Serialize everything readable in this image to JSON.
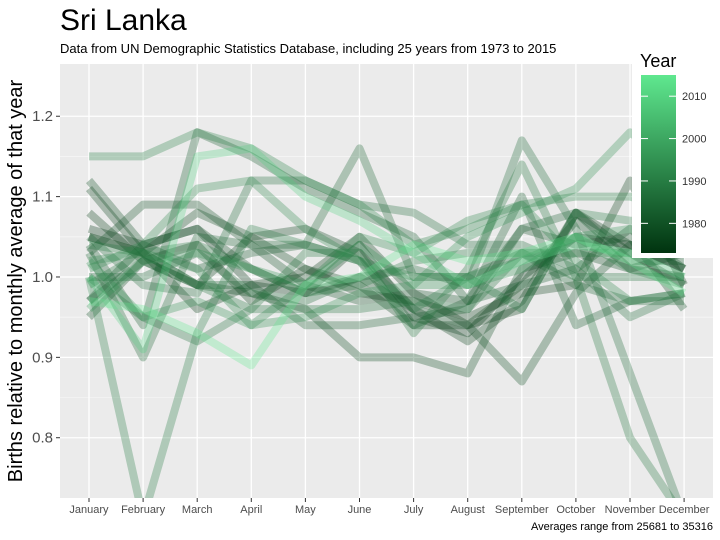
{
  "chart_data": {
    "type": "line",
    "title": "Sri Lanka",
    "subtitle": "Data from UN Demographic Statistics Database, including 25 years from 1973 to 2015",
    "xlabel": "",
    "ylabel": "Births relative to monthly average of that year",
    "caption": "Averages range from 25681 to 35316",
    "categories": [
      "January",
      "February",
      "March",
      "April",
      "May",
      "June",
      "July",
      "August",
      "September",
      "October",
      "November",
      "December"
    ],
    "yticks": [
      0.8,
      0.9,
      1.0,
      1.1,
      1.2
    ],
    "ytick_labels": [
      "0.8",
      "0.9",
      "1.0",
      "1.1",
      "1.2"
    ],
    "ylim": [
      0.725,
      1.265
    ],
    "grid": true,
    "legend": {
      "title": "Year",
      "position": "top-right",
      "type": "colorbar",
      "range": [
        1973,
        2015
      ],
      "ticks": [
        1980,
        1990,
        2000,
        2010
      ],
      "tick_labels": [
        "1980",
        "1990",
        "2000",
        "2010"
      ],
      "colors": [
        "#00330f",
        "#5fe88f"
      ]
    },
    "series": [
      {
        "year": 1973,
        "values": [
          1.06,
          1.04,
          1.06,
          0.99,
          0.98,
          1.04,
          0.95,
          0.93,
          1.0,
          1.05,
          1.04,
          1.01
        ]
      },
      {
        "year": 1974,
        "values": [
          1.05,
          1.03,
          0.96,
          0.99,
          1.0,
          1.05,
          0.98,
          0.94,
          0.96,
          1.08,
          1.04,
          1.03
        ]
      },
      {
        "year": 1975,
        "values": [
          1.08,
          1.02,
          1.04,
          0.97,
          1.01,
          0.98,
          0.97,
          0.95,
          0.98,
          0.99,
          1.12,
          0.99
        ]
      },
      {
        "year": 1976,
        "values": [
          1.11,
          1.03,
          0.99,
          1.05,
          1.06,
          1.03,
          0.96,
          0.92,
          0.97,
          1.08,
          1.03,
          0.99
        ]
      },
      {
        "year": 1977,
        "values": [
          1.05,
          1.03,
          1.08,
          1.05,
          1.01,
          0.99,
          0.94,
          0.94,
          0.99,
          1.07,
          1.01,
          1.03
        ]
      },
      {
        "year": 1978,
        "values": [
          0.95,
          1.02,
          0.99,
          0.98,
          0.96,
          0.9,
          0.9,
          0.88,
          1.01,
          1.03,
          1.01,
          1.0
        ]
      },
      {
        "year": 1979,
        "values": [
          1.12,
          1.04,
          1.06,
          1.01,
          0.98,
          1.0,
          0.96,
          0.94,
          0.87,
          0.98,
          1.04,
          1.01
        ]
      },
      {
        "year": 1980,
        "values": [
          1.03,
          1.09,
          1.09,
          1.04,
          0.99,
          0.97,
          0.98,
          0.97,
          1.06,
          1.04,
          1.05,
          0.96
        ]
      },
      {
        "year": 1981,
        "values": [
          0.97,
          1.04,
          1.01,
          1.03,
          1.04,
          1.02,
          0.94,
          0.97,
          1.1,
          0.94,
          0.97,
          0.98
        ]
      },
      {
        "year": 1982,
        "values": [
          1.04,
          0.94,
          1.18,
          1.15,
          1.11,
          1.08,
          1.05,
          0.97,
          0.99,
          1.01,
          1.06,
          1.01
        ]
      },
      {
        "year": 1983,
        "values": [
          0.97,
          1.02,
          0.99,
          0.99,
          0.94,
          0.94,
          0.95,
          0.96,
          1.06,
          1.08,
          1.02,
          1.02
        ]
      },
      {
        "year": 1984,
        "values": [
          1.03,
          0.9,
          1.05,
          1.04,
          1.04,
          1.16,
          1.0,
          1.0,
          1.03,
          0.99,
          0.97,
          0.97
        ]
      },
      {
        "year": 1985,
        "values": [
          1.0,
          1.0,
          1.03,
          0.98,
          0.97,
          1.0,
          1.01,
          0.99,
          1.17,
          1.06,
          0.88,
          0.7
        ]
      },
      {
        "year": 1986,
        "values": [
          1.05,
          0.99,
          0.98,
          1.12,
          1.12,
          1.09,
          1.08,
          1.04,
          1.04,
          1.01,
          0.95,
          0.98
        ]
      },
      {
        "year": 1987,
        "values": [
          1.0,
          0.95,
          0.92,
          0.96,
          0.96,
          0.96,
          0.97,
          0.96,
          1.03,
          1.0,
          1.0,
          1.0
        ]
      },
      {
        "year": 1988,
        "values": [
          0.99,
          1.03,
          0.99,
          0.96,
          1.03,
          1.03,
          0.93,
          1.01,
          1.14,
          1.0,
          0.8,
          0.7
        ]
      },
      {
        "year": 1989,
        "values": [
          1.04,
          1.03,
          1.04,
          1.01,
          0.98,
          0.99,
          1.02,
          1.03,
          1.03,
          1.03,
          1.03,
          1.03
        ]
      },
      {
        "year": 1990,
        "values": [
          1.0,
          0.7,
          0.93,
          1.06,
          1.04,
          1.02,
          0.96,
          1.0,
          0.96,
          1.08,
          1.07,
          1.07
        ]
      },
      {
        "year": 1991,
        "values": [
          1.15,
          1.15,
          1.18,
          1.16,
          1.12,
          1.09,
          1.04,
          1.06,
          1.09,
          1.1,
          1.1,
          1.08
        ]
      },
      {
        "year": 1992,
        "values": [
          1.02,
          1.03,
          1.01,
          0.94,
          0.99,
          1.05,
          1.03,
          1.07,
          1.09,
          1.02,
          0.97,
          0.98
        ]
      },
      {
        "year": 1993,
        "values": [
          1.01,
          1.04,
          1.11,
          1.12,
          1.06,
          1.02,
          1.0,
          1.0,
          1.02,
          1.05,
          1.01,
          0.99
        ]
      },
      {
        "year": 1994,
        "values": [
          1.02,
          0.95,
          0.97,
          0.94,
          0.95,
          0.98,
          0.99,
          1.05,
          1.08,
          1.11,
          1.18,
          1.13
        ]
      },
      {
        "year": 1995,
        "values": [
          0.96,
          1.02,
          1.03,
          1.01,
          0.99,
          1.04,
          0.99,
          0.99,
          1.01,
          1.05,
          1.06,
          1.04
        ]
      },
      {
        "year": 2010,
        "values": [
          1.0,
          0.91,
          1.15,
          1.16,
          1.1,
          1.07,
          1.03,
          0.99,
          1.02,
          1.04,
          1.03,
          1.0
        ]
      },
      {
        "year": 2015,
        "values": [
          0.97,
          0.96,
          0.93,
          0.89,
          0.99,
          1.0,
          1.04,
          1.02,
          1.03,
          1.05,
          1.02,
          0.98
        ]
      }
    ]
  }
}
